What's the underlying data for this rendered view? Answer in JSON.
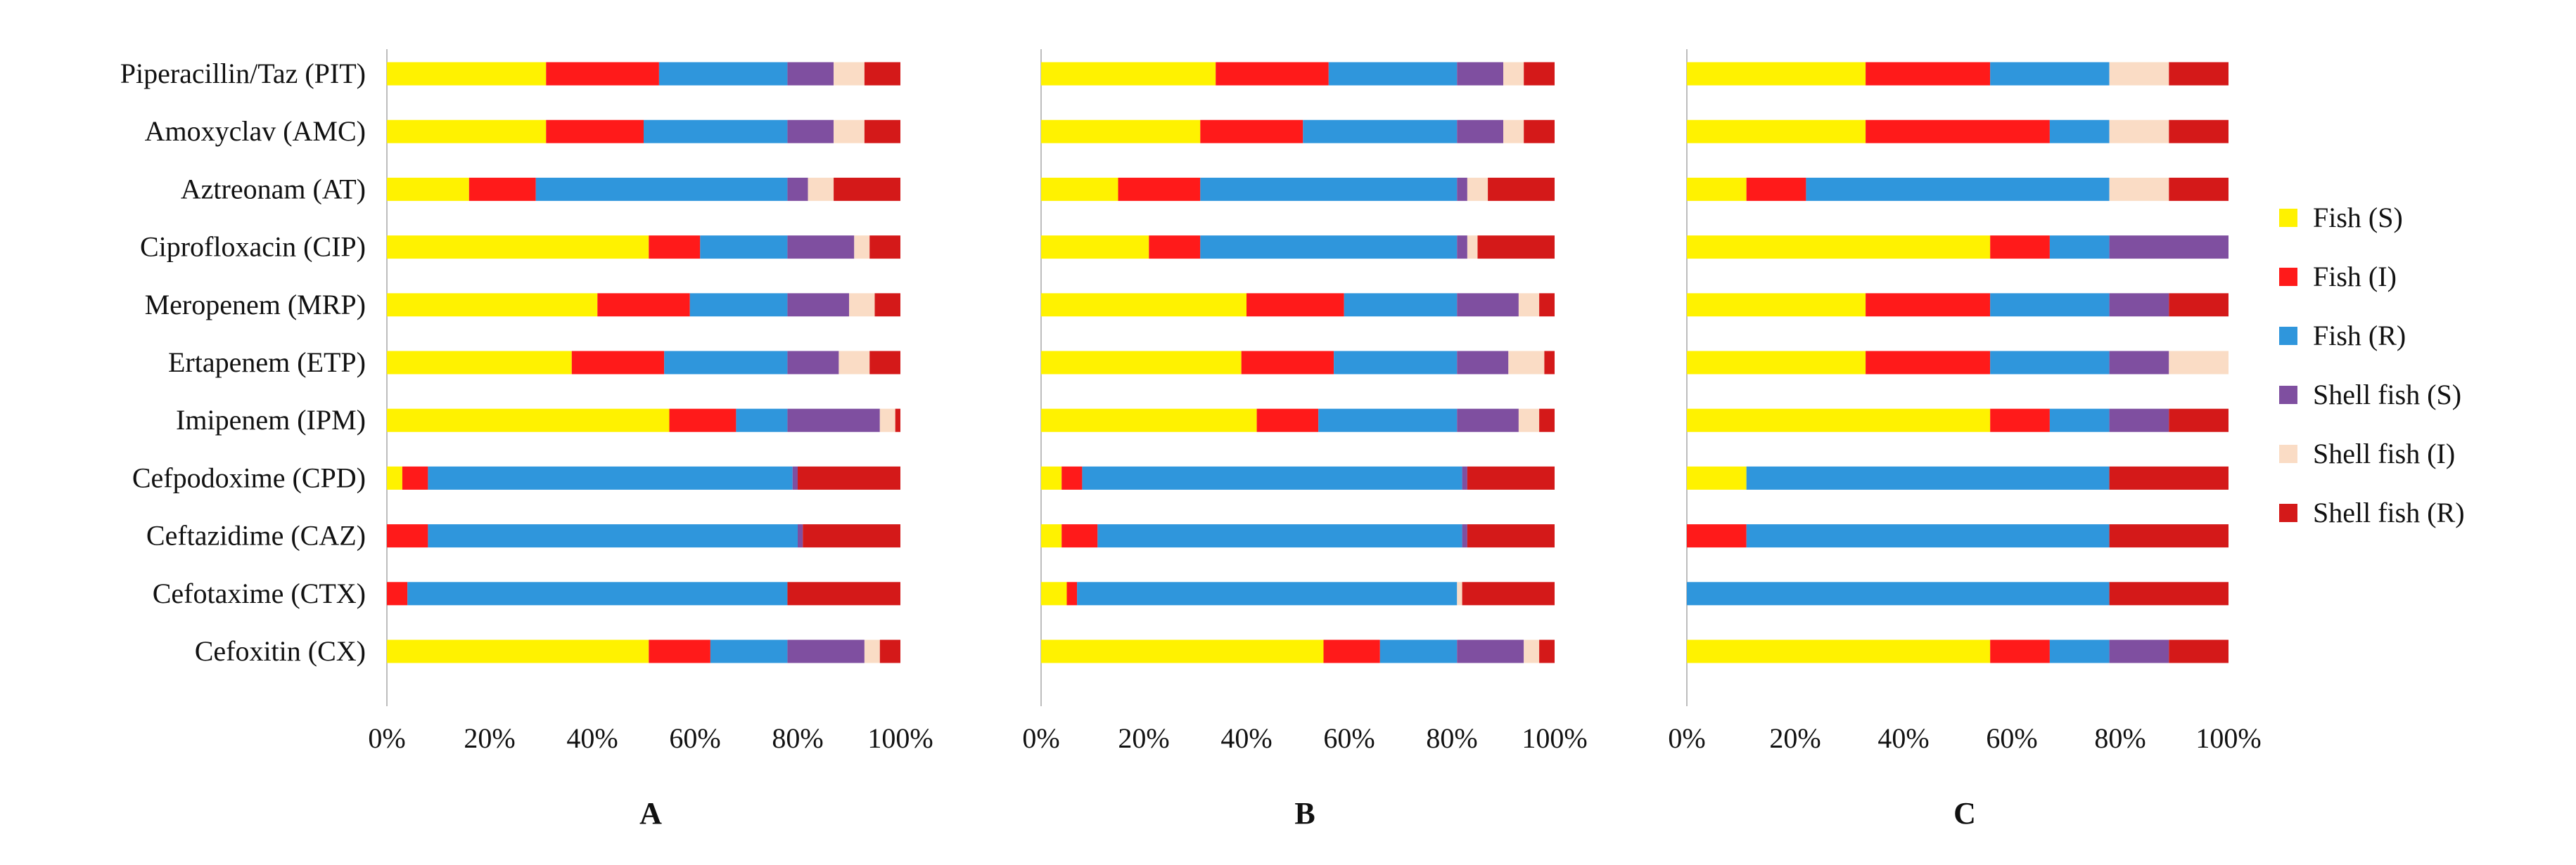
{
  "chart_data": [
    {
      "type": "bar",
      "orientation": "horizontal",
      "stacked": "percent",
      "title": "A",
      "categories": [
        "Piperacillin/Taz (PIT)",
        "Amoxyclav (AMC)",
        "Aztreonam (AT)",
        "Ciprofloxacin (CIP)",
        "Meropenem (MRP)",
        "Ertapenem (ETP)",
        "Imipenem (IPM)",
        "Cefpodoxime (CPD)",
        "Ceftazidime (CAZ)",
        "Cefotaxime (CTX)",
        "Cefoxitin (CX)"
      ],
      "series": [
        {
          "name": "Fish  (S)",
          "values": [
            31,
            31,
            16,
            51,
            41,
            36,
            55,
            3,
            0,
            0,
            51
          ]
        },
        {
          "name": "Fish  (I)",
          "values": [
            22,
            19,
            13,
            10,
            18,
            18,
            13,
            5,
            8,
            4,
            12
          ]
        },
        {
          "name": "Fish  (R)",
          "values": [
            25,
            28,
            49,
            17,
            19,
            24,
            10,
            71,
            72,
            74,
            15
          ]
        },
        {
          "name": "Shell fish  (S)",
          "values": [
            9,
            9,
            4,
            13,
            12,
            10,
            18,
            1,
            1,
            0,
            15
          ]
        },
        {
          "name": "Shell fish  (I)",
          "values": [
            6,
            6,
            5,
            3,
            5,
            6,
            3,
            0,
            0,
            0,
            3
          ]
        },
        {
          "name": "Shell fish  (R)",
          "values": [
            7,
            7,
            13,
            6,
            5,
            6,
            1,
            20,
            19,
            22,
            4
          ]
        }
      ],
      "xticks": [
        "0%",
        "20%",
        "40%",
        "60%",
        "80%",
        "100%"
      ],
      "xlim": [
        0,
        100
      ]
    },
    {
      "type": "bar",
      "orientation": "horizontal",
      "stacked": "percent",
      "title": "B",
      "categories": [
        "Piperacillin/Taz (PIT)",
        "Amoxyclav (AMC)",
        "Aztreonam (AT)",
        "Ciprofloxacin (CIP)",
        "Meropenem (MRP)",
        "Ertapenem (ETP)",
        "Imipenem (IPM)",
        "Cefpodoxime (CPD)",
        "Ceftazidime (CAZ)",
        "Cefotaxime (CTX)",
        "Cefoxitin (CX)"
      ],
      "series": [
        {
          "name": "Fish  (S)",
          "values": [
            34,
            31,
            15,
            21,
            40,
            39,
            42,
            4,
            4,
            5,
            55
          ]
        },
        {
          "name": "Fish  (I)",
          "values": [
            22,
            20,
            16,
            10,
            19,
            18,
            12,
            4,
            7,
            2,
            11
          ]
        },
        {
          "name": "Fish  (R)",
          "values": [
            25,
            30,
            50,
            50,
            22,
            24,
            27,
            74,
            71,
            74,
            15
          ]
        },
        {
          "name": "Shell fish  (S)",
          "values": [
            9,
            9,
            2,
            2,
            12,
            10,
            12,
            1,
            1,
            0,
            13
          ]
        },
        {
          "name": "Shell fish  (I)",
          "values": [
            4,
            4,
            4,
            2,
            4,
            7,
            4,
            0,
            0,
            1,
            3
          ]
        },
        {
          "name": "Shell fish  (R)",
          "values": [
            6,
            6,
            13,
            15,
            3,
            2,
            3,
            17,
            17,
            18,
            3
          ]
        }
      ],
      "xticks": [
        "0%",
        "20%",
        "40%",
        "60%",
        "80%",
        "100%"
      ],
      "xlim": [
        0,
        100
      ]
    },
    {
      "type": "bar",
      "orientation": "horizontal",
      "stacked": "percent",
      "title": "C",
      "categories": [
        "Piperacillin/Taz (PIT)",
        "Amoxyclav (AMC)",
        "Aztreonam (AT)",
        "Ciprofloxacin (CIP)",
        "Meropenem (MRP)",
        "Ertapenem (ETP)",
        "Imipenem (IPM)",
        "Cefpodoxime (CPD)",
        "Ceftazidime (CAZ)",
        "Cefotaxime (CTX)",
        "Cefoxitin (CX)"
      ],
      "series": [
        {
          "name": "Fish  (S)",
          "values": [
            33,
            33,
            11,
            56,
            33,
            33,
            56,
            11,
            0,
            0,
            56
          ]
        },
        {
          "name": "Fish  (I)",
          "values": [
            23,
            34,
            11,
            11,
            23,
            23,
            11,
            0,
            11,
            0,
            11
          ]
        },
        {
          "name": "Fish  (R)",
          "values": [
            22,
            11,
            56,
            11,
            22,
            22,
            11,
            67,
            67,
            78,
            11
          ]
        },
        {
          "name": "Shell fish  (S)",
          "values": [
            0,
            0,
            0,
            22,
            11,
            11,
            11,
            0,
            0,
            0,
            11
          ]
        },
        {
          "name": "Shell fish  (I)",
          "values": [
            11,
            11,
            11,
            0,
            0,
            11,
            0,
            0,
            0,
            0,
            0
          ]
        },
        {
          "name": "Shell fish  (R)",
          "values": [
            11,
            11,
            11,
            0,
            11,
            0,
            11,
            22,
            22,
            22,
            11
          ]
        }
      ],
      "xticks": [
        "0%",
        "20%",
        "40%",
        "60%",
        "80%",
        "100%"
      ],
      "xlim": [
        0,
        100
      ]
    }
  ],
  "legend": {
    "placement": "right",
    "items": [
      "Fish  (S)",
      "Fish  (I)",
      "Fish  (R)",
      "Shell fish  (S)",
      "Shell fish  (I)",
      "Shell fish  (R)"
    ]
  },
  "colors": [
    "#fff200",
    "#ff1a1a",
    "#2f96dc",
    "#7f4fa0",
    "#fadcc5",
    "#d41919"
  ]
}
